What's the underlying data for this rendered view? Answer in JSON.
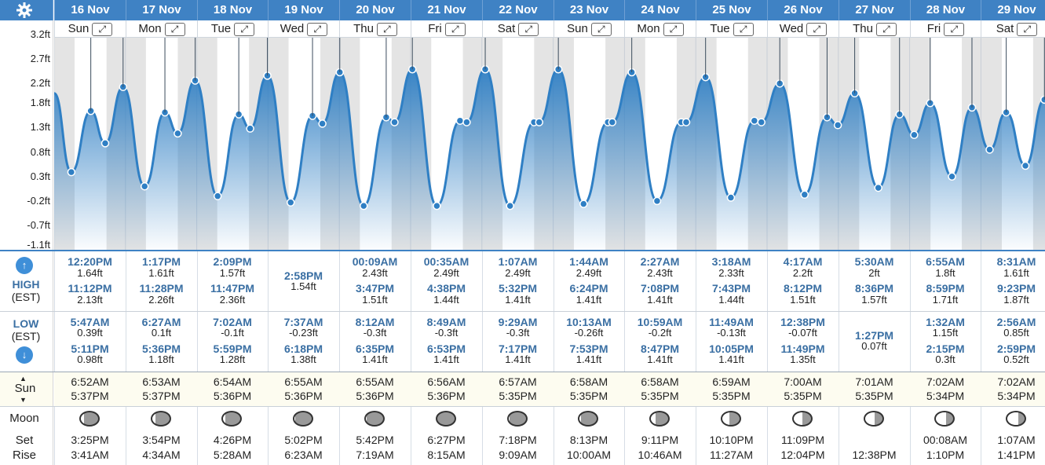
{
  "settings_icon": "gear-icon",
  "days": [
    {
      "date": "16 Nov",
      "weekday": "Sun",
      "high1": {
        "time": "12:20PM",
        "ht": "1.64ft"
      },
      "high2": {
        "time": "11:12PM",
        "ht": "2.13ft"
      },
      "low1": {
        "time": "5:47AM",
        "ht": "0.39ft"
      },
      "low2": {
        "time": "5:11PM",
        "ht": "0.98ft"
      },
      "sunrise": "6:52AM",
      "sunset": "5:37PM",
      "moonset": "3:25PM",
      "moonrise": "3:41AM"
    },
    {
      "date": "17 Nov",
      "weekday": "Mon",
      "high1": {
        "time": "1:17PM",
        "ht": "1.61ft"
      },
      "high2": {
        "time": "11:28PM",
        "ht": "2.26ft"
      },
      "low1": {
        "time": "6:27AM",
        "ht": "0.1ft"
      },
      "low2": {
        "time": "5:36PM",
        "ht": "1.18ft"
      },
      "sunrise": "6:53AM",
      "sunset": "5:37PM",
      "moonset": "3:54PM",
      "moonrise": "4:34AM"
    },
    {
      "date": "18 Nov",
      "weekday": "Tue",
      "high1": {
        "time": "2:09PM",
        "ht": "1.57ft"
      },
      "high2": {
        "time": "11:47PM",
        "ht": "2.36ft"
      },
      "low1": {
        "time": "7:02AM",
        "ht": "-0.1ft"
      },
      "low2": {
        "time": "5:59PM",
        "ht": "1.28ft"
      },
      "sunrise": "6:54AM",
      "sunset": "5:36PM",
      "moonset": "4:26PM",
      "moonrise": "5:28AM"
    },
    {
      "date": "19 Nov",
      "weekday": "Wed",
      "high1": {
        "time": "2:58PM",
        "ht": "1.54ft"
      },
      "high2": null,
      "low1": {
        "time": "7:37AM",
        "ht": "-0.23ft"
      },
      "low2": {
        "time": "6:18PM",
        "ht": "1.38ft"
      },
      "sunrise": "6:55AM",
      "sunset": "5:36PM",
      "moonset": "5:02PM",
      "moonrise": "6:23AM"
    },
    {
      "date": "20 Nov",
      "weekday": "Thu",
      "high1": {
        "time": "00:09AM",
        "ht": "2.43ft"
      },
      "high2": {
        "time": "3:47PM",
        "ht": "1.51ft"
      },
      "low1": {
        "time": "8:12AM",
        "ht": "-0.3ft"
      },
      "low2": {
        "time": "6:35PM",
        "ht": "1.41ft"
      },
      "sunrise": "6:55AM",
      "sunset": "5:36PM",
      "moonset": "5:42PM",
      "moonrise": "7:19AM"
    },
    {
      "date": "21 Nov",
      "weekday": "Fri",
      "high1": {
        "time": "00:35AM",
        "ht": "2.49ft"
      },
      "high2": {
        "time": "4:38PM",
        "ht": "1.44ft"
      },
      "low1": {
        "time": "8:49AM",
        "ht": "-0.3ft"
      },
      "low2": {
        "time": "6:53PM",
        "ht": "1.41ft"
      },
      "sunrise": "6:56AM",
      "sunset": "5:36PM",
      "moonset": "6:27PM",
      "moonrise": "8:15AM"
    },
    {
      "date": "22 Nov",
      "weekday": "Sat",
      "high1": {
        "time": "1:07AM",
        "ht": "2.49ft"
      },
      "high2": {
        "time": "5:32PM",
        "ht": "1.41ft"
      },
      "low1": {
        "time": "9:29AM",
        "ht": "-0.3ft"
      },
      "low2": {
        "time": "7:17PM",
        "ht": "1.41ft"
      },
      "sunrise": "6:57AM",
      "sunset": "5:35PM",
      "moonset": "7:18PM",
      "moonrise": "9:09AM"
    },
    {
      "date": "23 Nov",
      "weekday": "Sun",
      "high1": {
        "time": "1:44AM",
        "ht": "2.49ft"
      },
      "high2": {
        "time": "6:24PM",
        "ht": "1.41ft"
      },
      "low1": {
        "time": "10:13AM",
        "ht": "-0.26ft"
      },
      "low2": {
        "time": "7:53PM",
        "ht": "1.41ft"
      },
      "sunrise": "6:58AM",
      "sunset": "5:35PM",
      "moonset": "8:13PM",
      "moonrise": "10:00AM"
    },
    {
      "date": "24 Nov",
      "weekday": "Mon",
      "high1": {
        "time": "2:27AM",
        "ht": "2.43ft"
      },
      "high2": {
        "time": "7:08PM",
        "ht": "1.41ft"
      },
      "low1": {
        "time": "10:59AM",
        "ht": "-0.2ft"
      },
      "low2": {
        "time": "8:47PM",
        "ht": "1.41ft"
      },
      "sunrise": "6:58AM",
      "sunset": "5:35PM",
      "moonset": "9:11PM",
      "moonrise": "10:46AM"
    },
    {
      "date": "25 Nov",
      "weekday": "Tue",
      "high1": {
        "time": "3:18AM",
        "ht": "2.33ft"
      },
      "high2": {
        "time": "7:43PM",
        "ht": "1.44ft"
      },
      "low1": {
        "time": "11:49AM",
        "ht": "-0.13ft"
      },
      "low2": {
        "time": "10:05PM",
        "ht": "1.41ft"
      },
      "sunrise": "6:59AM",
      "sunset": "5:35PM",
      "moonset": "10:10PM",
      "moonrise": "11:27AM"
    },
    {
      "date": "26 Nov",
      "weekday": "Wed",
      "high1": {
        "time": "4:17AM",
        "ht": "2.2ft"
      },
      "high2": {
        "time": "8:12PM",
        "ht": "1.51ft"
      },
      "low1": {
        "time": "12:38PM",
        "ht": "-0.07ft"
      },
      "low2": {
        "time": "11:49PM",
        "ht": "1.35ft"
      },
      "sunrise": "7:00AM",
      "sunset": "5:35PM",
      "moonset": "11:09PM",
      "moonrise": "12:04PM"
    },
    {
      "date": "27 Nov",
      "weekday": "Thu",
      "high1": {
        "time": "5:30AM",
        "ht": "2ft"
      },
      "high2": {
        "time": "8:36PM",
        "ht": "1.57ft"
      },
      "low1": {
        "time": "1:27PM",
        "ht": "0.07ft"
      },
      "low2": null,
      "sunrise": "7:01AM",
      "sunset": "5:35PM",
      "moonset": "",
      "moonrise": "12:38PM"
    },
    {
      "date": "28 Nov",
      "weekday": "Fri",
      "high1": {
        "time": "6:55AM",
        "ht": "1.8ft"
      },
      "high2": {
        "time": "8:59PM",
        "ht": "1.71ft"
      },
      "low1": {
        "time": "1:32AM",
        "ht": "1.15ft"
      },
      "low2": {
        "time": "2:15PM",
        "ht": "0.3ft"
      },
      "sunrise": "7:02AM",
      "sunset": "5:34PM",
      "moonset": "00:08AM",
      "moonrise": "1:10PM"
    },
    {
      "date": "29 Nov",
      "weekday": "Sat",
      "high1": {
        "time": "8:31AM",
        "ht": "1.61ft"
      },
      "high2": {
        "time": "9:23PM",
        "ht": "1.87ft"
      },
      "low1": {
        "time": "2:56AM",
        "ht": "0.85ft"
      },
      "low2": {
        "time": "2:59PM",
        "ht": "0.52ft"
      },
      "sunrise": "7:02AM",
      "sunset": "5:34PM",
      "moonset": "1:07AM",
      "moonrise": "1:41PM"
    }
  ],
  "labels": {
    "high": "HIGH",
    "high_tz": "(EST)",
    "low": "LOW",
    "low_tz": "(EST)",
    "sun": "Sun",
    "moon": "Moon",
    "set": "Set",
    "rise": "Rise"
  },
  "expand_icon": "expand-arrows-icon",
  "colors": {
    "header": "#3f82c4",
    "accent": "#3a6fa3",
    "curve": "#2f7fc4",
    "night": "#e4e4e4"
  },
  "chart_data": {
    "type": "area",
    "yticks": [
      "3.2ft",
      "2.7ft",
      "2.2ft",
      "1.8ft",
      "1.3ft",
      "0.8ft",
      "0.3ft",
      "-0.2ft",
      "-0.7ft",
      "-1.1ft"
    ],
    "ylim": [
      -1.1,
      3.2
    ],
    "tides": [
      {
        "day": 0,
        "hour": 0,
        "ht": 2.0
      },
      {
        "day": 0,
        "hour": 5.78,
        "ht": 0.39
      },
      {
        "day": 0,
        "hour": 12.33,
        "ht": 1.64
      },
      {
        "day": 0,
        "hour": 17.18,
        "ht": 0.98
      },
      {
        "day": 0,
        "hour": 23.2,
        "ht": 2.13
      },
      {
        "day": 1,
        "hour": 6.45,
        "ht": 0.1
      },
      {
        "day": 1,
        "hour": 13.28,
        "ht": 1.61
      },
      {
        "day": 1,
        "hour": 17.6,
        "ht": 1.18
      },
      {
        "day": 1,
        "hour": 23.47,
        "ht": 2.26
      },
      {
        "day": 2,
        "hour": 7.03,
        "ht": -0.1
      },
      {
        "day": 2,
        "hour": 14.15,
        "ht": 1.57
      },
      {
        "day": 2,
        "hour": 17.98,
        "ht": 1.28
      },
      {
        "day": 2,
        "hour": 23.78,
        "ht": 2.36
      },
      {
        "day": 3,
        "hour": 7.62,
        "ht": -0.23
      },
      {
        "day": 3,
        "hour": 14.97,
        "ht": 1.54
      },
      {
        "day": 3,
        "hour": 18.3,
        "ht": 1.38
      },
      {
        "day": 4,
        "hour": 0.15,
        "ht": 2.43
      },
      {
        "day": 4,
        "hour": 8.2,
        "ht": -0.3
      },
      {
        "day": 4,
        "hour": 15.78,
        "ht": 1.51
      },
      {
        "day": 4,
        "hour": 18.58,
        "ht": 1.41
      },
      {
        "day": 5,
        "hour": 0.58,
        "ht": 2.49
      },
      {
        "day": 5,
        "hour": 8.82,
        "ht": -0.3
      },
      {
        "day": 5,
        "hour": 16.63,
        "ht": 1.44
      },
      {
        "day": 5,
        "hour": 18.88,
        "ht": 1.41
      },
      {
        "day": 6,
        "hour": 1.12,
        "ht": 2.49
      },
      {
        "day": 6,
        "hour": 9.48,
        "ht": -0.3
      },
      {
        "day": 6,
        "hour": 17.53,
        "ht": 1.41
      },
      {
        "day": 6,
        "hour": 19.28,
        "ht": 1.41
      },
      {
        "day": 7,
        "hour": 1.73,
        "ht": 2.49
      },
      {
        "day": 7,
        "hour": 10.22,
        "ht": -0.26
      },
      {
        "day": 7,
        "hour": 18.4,
        "ht": 1.41
      },
      {
        "day": 7,
        "hour": 19.88,
        "ht": 1.41
      },
      {
        "day": 8,
        "hour": 2.45,
        "ht": 2.43
      },
      {
        "day": 8,
        "hour": 10.98,
        "ht": -0.2
      },
      {
        "day": 8,
        "hour": 19.13,
        "ht": 1.41
      },
      {
        "day": 8,
        "hour": 20.78,
        "ht": 1.41
      },
      {
        "day": 9,
        "hour": 3.3,
        "ht": 2.33
      },
      {
        "day": 9,
        "hour": 11.82,
        "ht": -0.13
      },
      {
        "day": 9,
        "hour": 19.72,
        "ht": 1.44
      },
      {
        "day": 9,
        "hour": 22.08,
        "ht": 1.41
      },
      {
        "day": 10,
        "hour": 4.28,
        "ht": 2.2
      },
      {
        "day": 10,
        "hour": 12.63,
        "ht": -0.07
      },
      {
        "day": 10,
        "hour": 20.2,
        "ht": 1.51
      },
      {
        "day": 10,
        "hour": 23.82,
        "ht": 1.35
      },
      {
        "day": 11,
        "hour": 5.5,
        "ht": 2.0
      },
      {
        "day": 11,
        "hour": 13.45,
        "ht": 0.07
      },
      {
        "day": 11,
        "hour": 20.6,
        "ht": 1.57
      },
      {
        "day": 12,
        "hour": 1.53,
        "ht": 1.15
      },
      {
        "day": 12,
        "hour": 6.92,
        "ht": 1.8
      },
      {
        "day": 12,
        "hour": 14.25,
        "ht": 0.3
      },
      {
        "day": 12,
        "hour": 20.98,
        "ht": 1.71
      },
      {
        "day": 13,
        "hour": 2.93,
        "ht": 0.85
      },
      {
        "day": 13,
        "hour": 8.52,
        "ht": 1.61
      },
      {
        "day": 13,
        "hour": 14.98,
        "ht": 0.52
      },
      {
        "day": 13,
        "hour": 21.38,
        "ht": 1.87
      }
    ],
    "moon_phase": [
      0.22,
      0.2,
      0.15,
      0.08,
      0.03,
      0.0,
      0.03,
      0.1,
      0.3,
      0.45,
      0.5,
      0.55,
      0.6,
      0.66
    ]
  }
}
